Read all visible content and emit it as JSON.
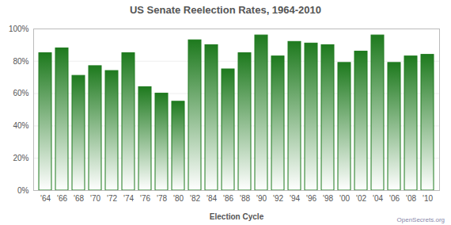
{
  "chart_data": {
    "type": "bar",
    "title": "US Senate Reelection Rates, 1964-2010",
    "x_label": "Election Cycle",
    "annotation": "OpenSecrets.org",
    "categories": [
      "'64",
      "'66",
      "'68",
      "'70",
      "'72",
      "'74",
      "'76",
      "'78",
      "'80",
      "'82",
      "'84",
      "'86",
      "'88",
      "'90",
      "'92",
      "'94",
      "'96",
      "'98",
      "'00",
      "'02",
      "'04",
      "'06",
      "'08",
      "'10"
    ],
    "values": [
      85,
      88,
      71,
      77,
      74,
      85,
      64,
      60,
      55,
      93,
      90,
      75,
      85,
      96,
      83,
      92,
      91,
      90,
      79,
      86,
      96,
      79,
      83,
      84
    ],
    "color": "#1e7a1e",
    "ylim": [
      0,
      100
    ],
    "yticks": [
      {
        "value": 0,
        "label": "0%"
      },
      {
        "value": 20,
        "label": "20%"
      },
      {
        "value": 40,
        "label": "40%"
      },
      {
        "value": 60,
        "label": "60%"
      },
      {
        "value": 80,
        "label": "80%"
      },
      {
        "value": 100,
        "label": "100%"
      }
    ],
    "grid": true
  }
}
